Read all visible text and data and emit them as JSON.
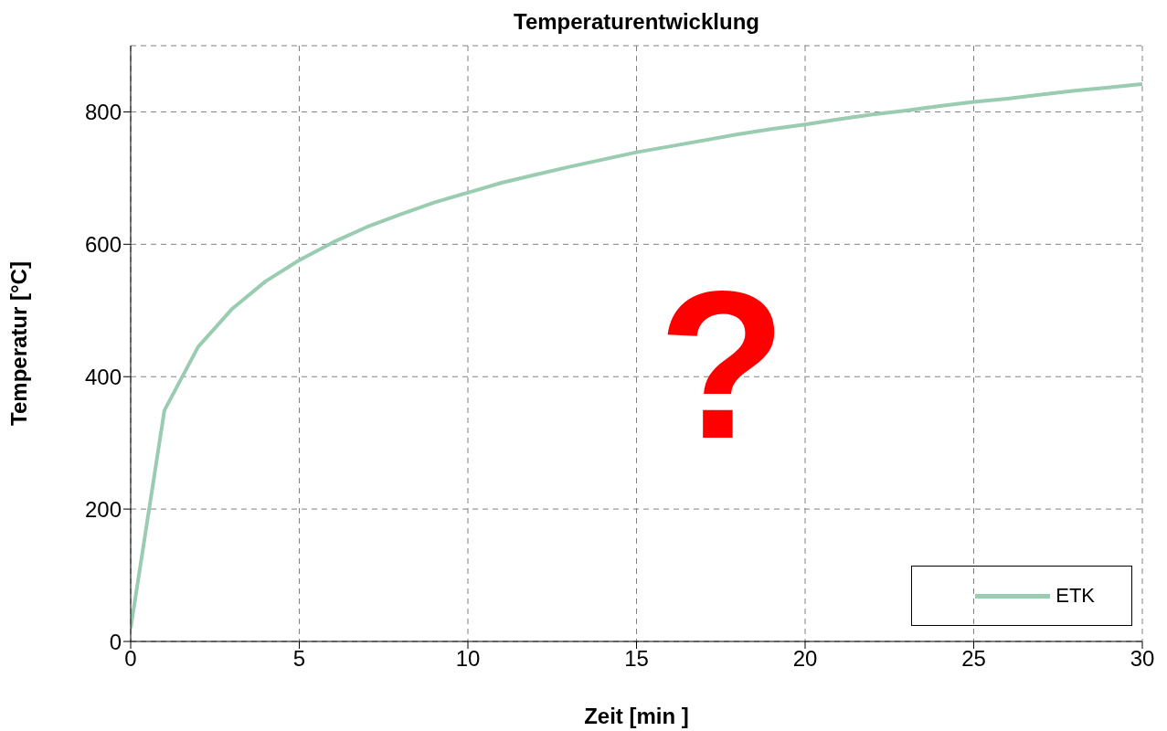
{
  "chart_data": {
    "type": "line",
    "title": "Temperaturentwicklung",
    "xlabel": "Zeit [min ]",
    "ylabel": "Temperatur [°C]",
    "x": [
      0,
      1,
      2,
      3,
      4,
      5,
      6,
      7,
      8,
      9,
      10,
      11,
      12,
      13,
      14,
      15,
      16,
      17,
      18,
      19,
      20,
      21,
      22,
      23,
      24,
      25,
      26,
      27,
      28,
      29,
      30
    ],
    "series": [
      {
        "name": "ETK",
        "color": "#99ccb0",
        "values": [
          20,
          349,
          445,
          502,
          544,
          576,
          603,
          626,
          645,
          663,
          678,
          693,
          705,
          717,
          728,
          739,
          748,
          757,
          766,
          774,
          781,
          789,
          796,
          802,
          809,
          815,
          820,
          826,
          832,
          837,
          842
        ]
      }
    ],
    "xlim": [
      0,
      30
    ],
    "xticks": [
      0,
      5,
      10,
      15,
      20,
      25,
      30
    ],
    "ylim": [
      0,
      900
    ],
    "yticks": [
      0,
      200,
      400,
      600,
      800
    ],
    "grid": true,
    "legend": "bottom right",
    "marker": "none",
    "line_style": "solid",
    "annotations": [
      "?"
    ]
  }
}
